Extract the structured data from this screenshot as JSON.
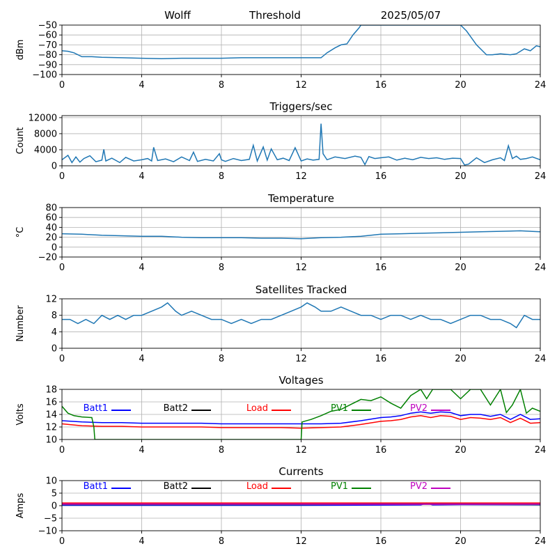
{
  "header": {
    "station": "Wolff",
    "panel_title": "Threshold",
    "date": "2025/05/07"
  },
  "colors": {
    "default_series": "#1f77b4",
    "batt1": "#0000ff",
    "batt2": "#000000",
    "load": "#ff0000",
    "pv1": "#008000",
    "pv2": "#bf00bf",
    "grid": "#b0b0b0"
  },
  "legend_labels": {
    "batt1": "Batt1",
    "batt2": "Batt2",
    "load": "Load",
    "pv1": "PV1",
    "pv2": "PV2"
  },
  "chart_data": [
    {
      "id": "threshold",
      "type": "line",
      "title": "",
      "ylabel": "dBm",
      "xlim": [
        0,
        24
      ],
      "ylim": [
        -100,
        -50
      ],
      "xticks": [
        0,
        4,
        8,
        12,
        16,
        20,
        24
      ],
      "yticks": [
        -100,
        -90,
        -80,
        -70,
        -60,
        -50
      ],
      "grid": true,
      "series": [
        {
          "color_key": "default_series",
          "x": [
            0,
            0.3,
            0.6,
            1.0,
            1.5,
            2.0,
            3.0,
            4.0,
            5.0,
            6.0,
            7.0,
            8.0,
            9.0,
            10.0,
            11.0,
            12.0,
            12.5,
            13.0,
            13.3,
            13.7,
            14.0,
            14.3,
            14.6,
            14.9,
            15.0,
            20.0,
            20.3,
            20.8,
            21.3,
            21.6,
            22.0,
            22.5,
            22.8,
            23.2,
            23.5,
            23.8,
            24.0
          ],
          "y": [
            -76,
            -76.5,
            -78,
            -82,
            -82,
            -82.5,
            -83,
            -83.5,
            -84,
            -83.5,
            -83.5,
            -83.5,
            -83,
            -83,
            -83,
            -83,
            -83,
            -83,
            -78,
            -73,
            -70,
            -69,
            -60,
            -53,
            -50,
            -50,
            -56,
            -70,
            -80,
            -80,
            -79,
            -80,
            -79,
            -74,
            -76,
            -71,
            -72
          ]
        }
      ]
    },
    {
      "id": "triggers",
      "type": "line",
      "title": "Triggers/sec",
      "ylabel": "Count",
      "xlim": [
        0,
        24
      ],
      "ylim": [
        0,
        12500
      ],
      "xticks": [
        0,
        4,
        8,
        12,
        16,
        20,
        24
      ],
      "yticks": [
        0,
        4000,
        8000,
        12000
      ],
      "grid": true,
      "series": [
        {
          "color_key": "default_series",
          "x": [
            0,
            0.3,
            0.5,
            0.7,
            0.9,
            1.1,
            1.4,
            1.7,
            2.0,
            2.1,
            2.2,
            2.5,
            2.9,
            3.2,
            3.6,
            4.0,
            4.3,
            4.5,
            4.6,
            4.8,
            5.2,
            5.6,
            6.0,
            6.4,
            6.6,
            6.8,
            7.2,
            7.6,
            7.9,
            8.0,
            8.2,
            8.6,
            9.0,
            9.4,
            9.6,
            9.8,
            10.1,
            10.3,
            10.5,
            10.8,
            11.1,
            11.4,
            11.7,
            12.0,
            12.3,
            12.6,
            12.9,
            13.0,
            13.1,
            13.3,
            13.7,
            14.2,
            14.7,
            15.0,
            15.2,
            15.4,
            15.7,
            16.0,
            16.4,
            16.8,
            17.2,
            17.6,
            18.0,
            18.4,
            18.8,
            19.2,
            19.6,
            20.0,
            20.2,
            20.4,
            20.8,
            21.2,
            21.6,
            22.0,
            22.2,
            22.4,
            22.6,
            22.8,
            23.0,
            23.3,
            23.6,
            24.0
          ],
          "y": [
            1500,
            2600,
            800,
            2200,
            900,
            1800,
            2500,
            1000,
            1400,
            4100,
            1200,
            1900,
            800,
            2100,
            1200,
            1500,
            1800,
            1200,
            4600,
            1300,
            1700,
            1000,
            2200,
            1300,
            3400,
            1100,
            1600,
            1200,
            3000,
            1500,
            1100,
            1800,
            1300,
            1600,
            5100,
            1200,
            4700,
            1400,
            4200,
            1500,
            1900,
            1300,
            4500,
            1200,
            1700,
            1400,
            1600,
            10500,
            3000,
            1500,
            2200,
            1800,
            2400,
            2100,
            300,
            2300,
            1800,
            2000,
            2200,
            1400,
            1900,
            1500,
            2100,
            1800,
            2000,
            1600,
            1900,
            1800,
            200,
            400,
            2000,
            800,
            1500,
            2000,
            1300,
            5000,
            1800,
            2400,
            1600,
            1800,
            2200,
            1500
          ]
        }
      ]
    },
    {
      "id": "temperature",
      "type": "line",
      "title": "Temperature",
      "ylabel": "°C",
      "xlim": [
        0,
        24
      ],
      "ylim": [
        -20,
        80
      ],
      "xticks": [
        0,
        4,
        8,
        12,
        16,
        20,
        24
      ],
      "yticks": [
        -20,
        0,
        20,
        40,
        60,
        80
      ],
      "grid": true,
      "series": [
        {
          "color_key": "default_series",
          "x": [
            0,
            1,
            2,
            3,
            4,
            5,
            6,
            7,
            8,
            9,
            10,
            11,
            12,
            13,
            14,
            15,
            16,
            17,
            18,
            19,
            20,
            21,
            22,
            23,
            24
          ],
          "y": [
            27,
            26,
            24,
            23,
            22,
            22,
            20,
            19,
            19,
            19,
            18,
            18,
            17,
            19,
            20,
            22,
            26,
            27,
            28,
            29,
            30,
            31,
            32,
            33,
            31
          ]
        }
      ]
    },
    {
      "id": "satellites",
      "type": "line",
      "title": "Satellites Tracked",
      "ylabel": "Number",
      "xlim": [
        0,
        24
      ],
      "ylim": [
        0,
        12
      ],
      "xticks": [
        0,
        4,
        8,
        12,
        16,
        20,
        24
      ],
      "yticks": [
        0,
        4,
        8,
        12
      ],
      "grid": true,
      "series": [
        {
          "color_key": "default_series",
          "x": [
            0,
            0.4,
            0.8,
            1.2,
            1.6,
            2.0,
            2.4,
            2.8,
            3.2,
            3.6,
            4.0,
            4.5,
            5.0,
            5.3,
            5.7,
            6.0,
            6.5,
            7.0,
            7.5,
            8.0,
            8.5,
            9.0,
            9.5,
            10.0,
            10.5,
            11.0,
            11.5,
            12.0,
            12.3,
            12.7,
            13.0,
            13.5,
            14.0,
            14.5,
            15.0,
            15.5,
            16.0,
            16.5,
            17.0,
            17.5,
            18.0,
            18.5,
            19.0,
            19.5,
            20.0,
            20.5,
            21.0,
            21.5,
            22.0,
            22.5,
            22.8,
            23.2,
            23.6,
            24.0
          ],
          "y": [
            7,
            7,
            6,
            7,
            6,
            8,
            7,
            8,
            7,
            8,
            8,
            9,
            10,
            11,
            9,
            8,
            9,
            8,
            7,
            7,
            6,
            7,
            6,
            7,
            7,
            8,
            9,
            10,
            11,
            10,
            9,
            9,
            10,
            9,
            8,
            8,
            7,
            8,
            8,
            7,
            8,
            7,
            7,
            6,
            7,
            8,
            8,
            7,
            7,
            6,
            5,
            8,
            7,
            7
          ]
        }
      ]
    },
    {
      "id": "voltages",
      "type": "line",
      "title": "Voltages",
      "ylabel": "Volts",
      "xlim": [
        0,
        24
      ],
      "ylim": [
        10,
        18
      ],
      "xticks": [
        0,
        4,
        8,
        12,
        16,
        20,
        24
      ],
      "yticks": [
        10,
        12,
        14,
        16,
        18
      ],
      "grid": true,
      "legend": [
        "Batt1",
        "Batt2",
        "Load",
        "PV1",
        "PV2"
      ],
      "series": [
        {
          "name": "Batt1",
          "color_key": "batt1",
          "x": [
            0,
            1,
            2,
            3,
            4,
            5,
            6,
            7,
            8,
            9,
            10,
            11,
            12,
            13,
            14,
            15,
            16,
            16.5,
            17,
            17.5,
            18,
            18.5,
            19,
            19.5,
            20,
            20.5,
            21,
            21.5,
            22,
            22.5,
            23,
            23.5,
            24
          ],
          "y": [
            13.0,
            12.8,
            12.7,
            12.7,
            12.6,
            12.6,
            12.6,
            12.6,
            12.5,
            12.5,
            12.5,
            12.5,
            12.5,
            12.5,
            12.6,
            13.0,
            13.5,
            13.6,
            13.8,
            14.2,
            14.4,
            14.2,
            14.4,
            14.3,
            13.8,
            14.0,
            14.0,
            13.7,
            14.0,
            13.2,
            14.0,
            13.2,
            13.3
          ]
        },
        {
          "name": "Load",
          "color_key": "load",
          "x": [
            0,
            1,
            2,
            3,
            4,
            5,
            6,
            7,
            8,
            9,
            10,
            11,
            12,
            13,
            14,
            15,
            16,
            16.5,
            17,
            17.5,
            18,
            18.5,
            19,
            19.5,
            20,
            20.5,
            21,
            21.5,
            22,
            22.5,
            23,
            23.5,
            24
          ],
          "y": [
            12.5,
            12.2,
            12.1,
            12.1,
            12.0,
            12.0,
            12.0,
            12.0,
            11.9,
            11.9,
            11.9,
            11.9,
            11.8,
            11.9,
            12.0,
            12.4,
            12.9,
            13.0,
            13.2,
            13.6,
            13.8,
            13.5,
            13.8,
            13.7,
            13.2,
            13.5,
            13.4,
            13.2,
            13.5,
            12.7,
            13.4,
            12.6,
            12.7
          ]
        },
        {
          "name": "PV1",
          "color_key": "pv1",
          "x": [
            0,
            0.3,
            0.6,
            1.0,
            1.5,
            1.6,
            1.65,
            12.0,
            12.05,
            12.5,
            13.0,
            13.5,
            14.0,
            14.5,
            15.0,
            15.5,
            16.0,
            16.5,
            17.0,
            17.5,
            18.0,
            18.3,
            18.6,
            19.0,
            19.5,
            20.0,
            20.5,
            21.0,
            21.5,
            22.0,
            22.3,
            22.6,
            23.0,
            23.3,
            23.6,
            24.0
          ],
          "y": [
            15.3,
            14.2,
            13.8,
            13.6,
            13.5,
            12.0,
            10.0,
            10.0,
            12.8,
            13.2,
            13.8,
            14.5,
            14.8,
            15.6,
            16.4,
            16.2,
            16.8,
            15.8,
            15.0,
            17.0,
            18.0,
            16.5,
            18.0,
            18.0,
            18.0,
            16.5,
            18.0,
            18.0,
            15.5,
            18.0,
            14.3,
            15.5,
            18.0,
            14.2,
            15.0,
            14.5
          ]
        }
      ]
    },
    {
      "id": "currents",
      "type": "line",
      "title": "Currents",
      "ylabel": "Amps",
      "xlim": [
        0,
        24
      ],
      "ylim": [
        -10,
        10
      ],
      "xticks": [
        0,
        4,
        8,
        12,
        16,
        20,
        24
      ],
      "yticks": [
        -10,
        -5,
        0,
        5,
        10
      ],
      "grid": true,
      "legend": [
        "Batt1",
        "Batt2",
        "Load",
        "PV1",
        "PV2"
      ],
      "series": [
        {
          "name": "Batt1",
          "color_key": "batt1",
          "x": [
            0,
            4,
            8,
            12,
            16,
            18,
            18.3,
            18.6,
            20,
            24
          ],
          "y": [
            0.2,
            0.2,
            0.2,
            0.2,
            0.3,
            0.4,
            1.0,
            0.4,
            0.5,
            0.4
          ]
        },
        {
          "name": "Load",
          "color_key": "load",
          "x": [
            0,
            4,
            8,
            12,
            16,
            20,
            24
          ],
          "y": [
            1.0,
            1.0,
            1.0,
            1.0,
            1.0,
            1.0,
            1.0
          ]
        },
        {
          "name": "PV1",
          "color_key": "pv1",
          "x": [
            0,
            4,
            8,
            12,
            16,
            20,
            24
          ],
          "y": [
            0.5,
            0.5,
            0.5,
            0.5,
            0.6,
            0.6,
            0.5
          ]
        },
        {
          "name": "PV2",
          "color_key": "pv2",
          "x": [
            0,
            4,
            8,
            12,
            16,
            20,
            24
          ],
          "y": [
            0.6,
            0.6,
            0.6,
            0.6,
            0.6,
            0.6,
            0.6
          ]
        }
      ]
    }
  ]
}
